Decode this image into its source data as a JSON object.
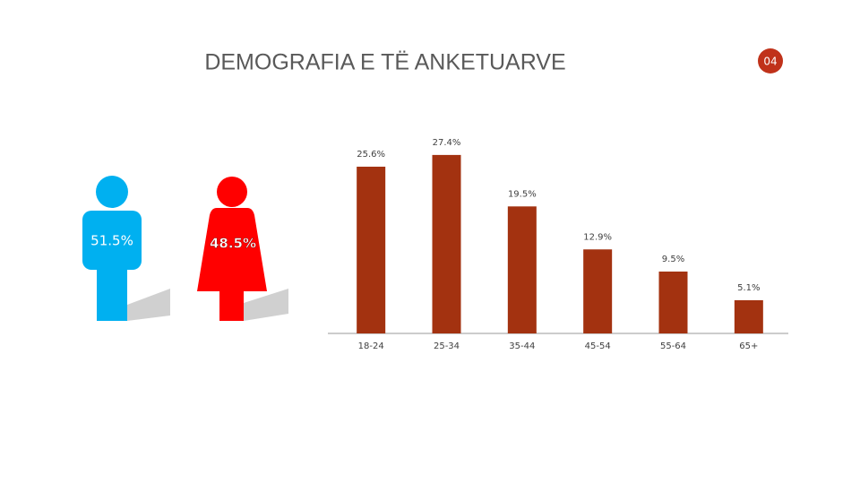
{
  "title": "DEMOGRAFIA E TË ANKETUARVE",
  "page_number": "04",
  "gender": [
    {
      "label": "51.5%",
      "color": "#00b0f0"
    },
    {
      "label": "48.5%",
      "color": "#ff0000"
    }
  ],
  "chart_data": {
    "type": "bar",
    "categories": [
      "18-24",
      "25-34",
      "35-44",
      "45-54",
      "55-64",
      "65+"
    ],
    "values": [
      25.6,
      27.4,
      19.5,
      12.9,
      9.5,
      5.1
    ],
    "value_labels": [
      "25.6%",
      "27.4%",
      "19.5%",
      "12.9%",
      "9.5%",
      "5.1%"
    ],
    "color": "#a33210",
    "ylim": [
      0,
      30
    ]
  }
}
